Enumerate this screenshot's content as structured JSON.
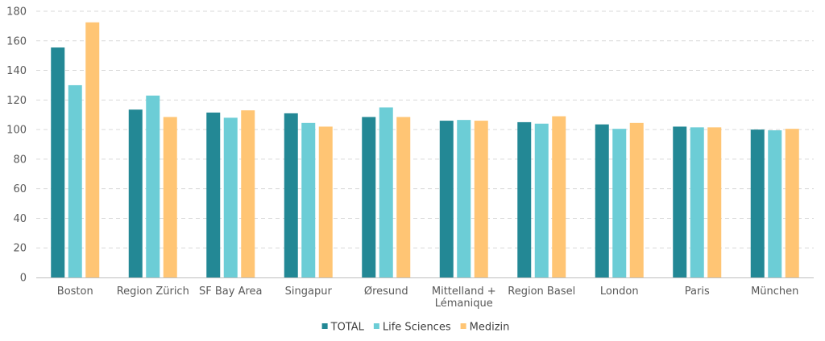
{
  "chart_data": {
    "type": "bar",
    "title": "",
    "xlabel": "",
    "ylabel": "",
    "ylim": [
      0,
      180
    ],
    "yticks": [
      0,
      20,
      40,
      60,
      80,
      100,
      120,
      140,
      160,
      180
    ],
    "grid": true,
    "legend_position": "bottom",
    "categories": [
      [
        "Boston"
      ],
      [
        "Region Zürich"
      ],
      [
        "SF Bay Area"
      ],
      [
        "Singapur"
      ],
      [
        "Øresund"
      ],
      [
        "Mittelland +",
        "Lémanique"
      ],
      [
        "Region Basel"
      ],
      [
        "London"
      ],
      [
        "Paris"
      ],
      [
        "München"
      ]
    ],
    "series": [
      {
        "name": "TOTAL",
        "color": "#238895",
        "values": [
          155.5,
          113.5,
          111.5,
          111,
          108.5,
          106,
          105,
          103.5,
          102,
          100
        ]
      },
      {
        "name": "Life Sciences",
        "color": "#6CCDD6",
        "values": [
          130,
          123,
          108,
          104.5,
          115,
          106.5,
          104,
          100.5,
          101.5,
          99.5
        ]
      },
      {
        "name": "Medizin",
        "color": "#FFC574",
        "values": [
          172.5,
          108.5,
          113,
          102,
          108.5,
          106,
          109,
          104.5,
          101.5,
          100.5
        ]
      }
    ]
  }
}
